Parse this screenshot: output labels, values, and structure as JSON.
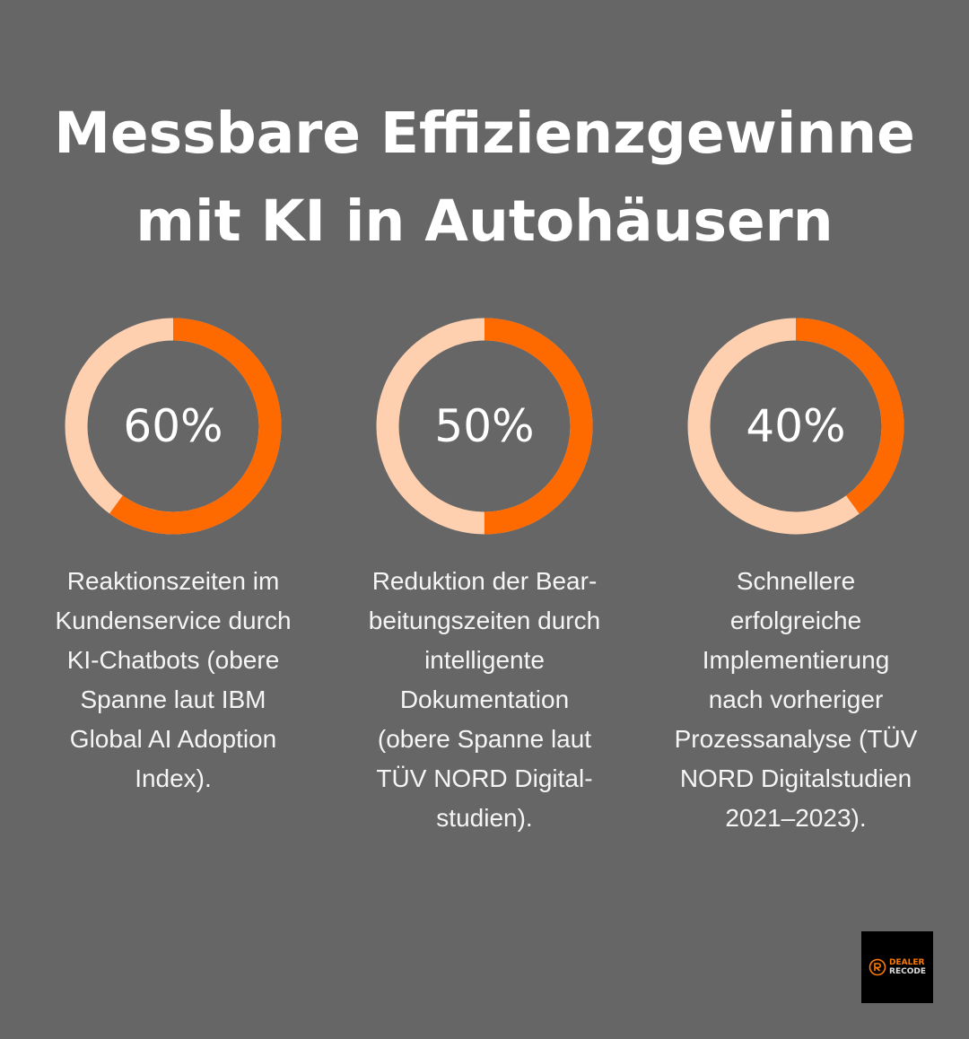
{
  "title": [
    "Messbare Effizienzgewinne",
    "mit KI in Autohäusern"
  ],
  "colors": {
    "background": "#666666",
    "accent": "#ff6a00",
    "track": "#ffd0b0"
  },
  "chart_data": [
    {
      "type": "pie",
      "style": "donut",
      "value": 60,
      "label": "60%",
      "description": [
        "Reaktionszeiten im",
        "Kundenservice durch",
        "KI-Chatbots (obere",
        "Spanne laut IBM",
        "Global AI Adoption",
        "Index)."
      ]
    },
    {
      "type": "pie",
      "style": "donut",
      "value": 50,
      "label": "50%",
      "description": [
        "Reduktion der Bear-",
        "beitungszeiten durch",
        "intelligente",
        "Dokumentation",
        "(obere Spanne laut",
        "TÜV NORD Digital-",
        "studien)."
      ]
    },
    {
      "type": "pie",
      "style": "donut",
      "value": 40,
      "label": "40%",
      "description": [
        "Schnellere",
        "erfolgreiche",
        "Implementierung",
        "nach vorheriger",
        "Prozessanalyse (TÜV",
        "NORD Digitalstudien",
        "2021–2023)."
      ]
    }
  ],
  "logo": {
    "line1": "DEALER",
    "line2": "RECODE"
  }
}
